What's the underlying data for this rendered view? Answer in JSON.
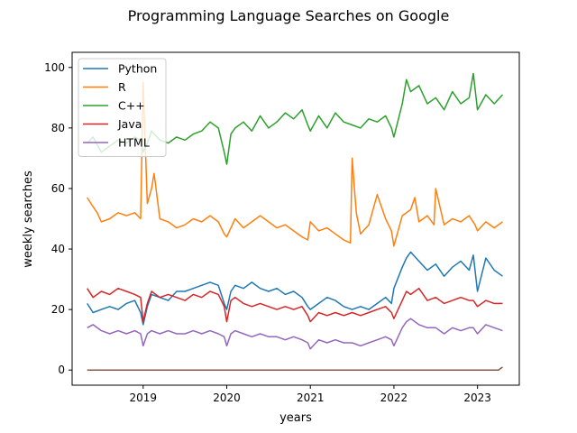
{
  "chart_data": {
    "type": "line",
    "title": "Programming Language Searches on Google",
    "xlabel": "years",
    "ylabel": "weekly searches",
    "xlim": [
      2018.15,
      2023.5
    ],
    "ylim": [
      -5,
      105
    ],
    "x_ticks": [
      2019,
      2020,
      2021,
      2022,
      2023
    ],
    "x_tick_labels": [
      "2019",
      "2020",
      "2021",
      "2022",
      "2023"
    ],
    "y_ticks": [
      0,
      20,
      40,
      60,
      80,
      100
    ],
    "y_tick_labels": [
      "0",
      "20",
      "40",
      "60",
      "80",
      "100"
    ],
    "grid": false,
    "legend_position": "top-left",
    "colors": {
      "Python": "#1f77b4",
      "R": "#ff7f0e",
      "C++": "#2ca02c",
      "Java": "#d62728",
      "HTML": "#9467bd",
      "extra": "#8c564b"
    },
    "series": [
      {
        "name": "Python",
        "x": [
          2018.33,
          2018.4,
          2018.5,
          2018.6,
          2018.7,
          2018.8,
          2018.9,
          2018.97,
          2019.0,
          2019.05,
          2019.1,
          2019.2,
          2019.3,
          2019.4,
          2019.5,
          2019.6,
          2019.7,
          2019.8,
          2019.9,
          2019.97,
          2020.0,
          2020.05,
          2020.1,
          2020.2,
          2020.3,
          2020.4,
          2020.5,
          2020.6,
          2020.7,
          2020.8,
          2020.9,
          2020.97,
          2021.0,
          2021.1,
          2021.2,
          2021.3,
          2021.4,
          2021.5,
          2021.6,
          2021.7,
          2021.8,
          2021.9,
          2021.97,
          2022.0,
          2022.1,
          2022.15,
          2022.2,
          2022.3,
          2022.4,
          2022.5,
          2022.6,
          2022.7,
          2022.8,
          2022.9,
          2022.95,
          2023.0,
          2023.1,
          2023.2,
          2023.3
        ],
        "values": [
          22,
          19,
          20,
          21,
          20,
          22,
          23,
          19,
          15,
          21,
          25,
          24,
          23,
          26,
          26,
          27,
          28,
          29,
          28,
          22,
          20,
          26,
          28,
          27,
          29,
          27,
          26,
          27,
          25,
          26,
          24,
          21,
          20,
          22,
          24,
          23,
          21,
          20,
          21,
          20,
          22,
          24,
          22,
          27,
          34,
          37,
          39,
          36,
          33,
          35,
          31,
          34,
          36,
          33,
          38,
          26,
          37,
          33,
          31
        ]
      },
      {
        "name": "R",
        "x": [
          2018.33,
          2018.4,
          2018.45,
          2018.5,
          2018.6,
          2018.7,
          2018.8,
          2018.9,
          2018.97,
          2019.0,
          2019.05,
          2019.1,
          2019.13,
          2019.2,
          2019.3,
          2019.4,
          2019.5,
          2019.6,
          2019.7,
          2019.8,
          2019.9,
          2019.97,
          2020.0,
          2020.1,
          2020.2,
          2020.3,
          2020.4,
          2020.5,
          2020.6,
          2020.7,
          2020.8,
          2020.9,
          2020.97,
          2021.0,
          2021.1,
          2021.2,
          2021.3,
          2021.4,
          2021.48,
          2021.5,
          2021.55,
          2021.6,
          2021.7,
          2021.8,
          2021.9,
          2021.97,
          2022.0,
          2022.1,
          2022.2,
          2022.25,
          2022.3,
          2022.4,
          2022.48,
          2022.5,
          2022.6,
          2022.7,
          2022.8,
          2022.9,
          2022.97,
          2023.0,
          2023.1,
          2023.2,
          2023.3
        ],
        "values": [
          57,
          54,
          52,
          49,
          50,
          52,
          51,
          52,
          50,
          95,
          55,
          60,
          65,
          50,
          49,
          47,
          48,
          50,
          49,
          51,
          49,
          45,
          44,
          50,
          47,
          49,
          51,
          49,
          47,
          48,
          46,
          44,
          43,
          49,
          46,
          47,
          45,
          43,
          42,
          70,
          52,
          45,
          48,
          58,
          50,
          46,
          41,
          51,
          53,
          57,
          49,
          51,
          48,
          60,
          48,
          50,
          49,
          51,
          48,
          46,
          49,
          47,
          49
        ]
      },
      {
        "name": "C++",
        "x": [
          2018.33,
          2018.4,
          2018.5,
          2018.6,
          2018.7,
          2018.8,
          2018.9,
          2018.97,
          2019.0,
          2019.05,
          2019.1,
          2019.2,
          2019.3,
          2019.4,
          2019.5,
          2019.6,
          2019.7,
          2019.8,
          2019.9,
          2019.97,
          2020.0,
          2020.05,
          2020.1,
          2020.2,
          2020.3,
          2020.4,
          2020.5,
          2020.6,
          2020.7,
          2020.8,
          2020.9,
          2020.97,
          2021.0,
          2021.1,
          2021.2,
          2021.3,
          2021.4,
          2021.5,
          2021.6,
          2021.7,
          2021.8,
          2021.9,
          2021.97,
          2022.0,
          2022.1,
          2022.15,
          2022.2,
          2022.3,
          2022.4,
          2022.5,
          2022.6,
          2022.7,
          2022.8,
          2022.9,
          2022.95,
          2023.0,
          2023.1,
          2023.2,
          2023.3
        ],
        "values": [
          75,
          77,
          72,
          74,
          76,
          75,
          77,
          76,
          72,
          75,
          79,
          76,
          75,
          77,
          76,
          78,
          79,
          82,
          80,
          72,
          68,
          78,
          80,
          82,
          79,
          84,
          80,
          82,
          85,
          83,
          86,
          81,
          79,
          84,
          80,
          85,
          82,
          81,
          80,
          83,
          82,
          84,
          80,
          77,
          88,
          96,
          92,
          94,
          88,
          90,
          86,
          92,
          88,
          90,
          98,
          86,
          91,
          88,
          91
        ]
      },
      {
        "name": "Java",
        "x": [
          2018.33,
          2018.4,
          2018.5,
          2018.6,
          2018.7,
          2018.8,
          2018.9,
          2018.97,
          2019.0,
          2019.05,
          2019.1,
          2019.2,
          2019.3,
          2019.4,
          2019.5,
          2019.6,
          2019.7,
          2019.8,
          2019.9,
          2019.97,
          2020.0,
          2020.05,
          2020.1,
          2020.2,
          2020.3,
          2020.4,
          2020.5,
          2020.6,
          2020.7,
          2020.8,
          2020.9,
          2020.97,
          2021.0,
          2021.1,
          2021.2,
          2021.3,
          2021.4,
          2021.5,
          2021.6,
          2021.7,
          2021.8,
          2021.9,
          2021.97,
          2022.0,
          2022.1,
          2022.15,
          2022.2,
          2022.3,
          2022.4,
          2022.5,
          2022.6,
          2022.7,
          2022.8,
          2022.9,
          2022.95,
          2023.0,
          2023.1,
          2023.2,
          2023.3
        ],
        "values": [
          27,
          24,
          26,
          25,
          27,
          26,
          25,
          24,
          16,
          22,
          26,
          24,
          25,
          24,
          23,
          25,
          24,
          26,
          25,
          21,
          16,
          23,
          24,
          22,
          21,
          22,
          21,
          20,
          21,
          20,
          21,
          18,
          16,
          19,
          18,
          19,
          18,
          19,
          18,
          19,
          20,
          21,
          19,
          17,
          23,
          26,
          25,
          27,
          23,
          24,
          22,
          23,
          24,
          23,
          23,
          21,
          23,
          22,
          22
        ]
      },
      {
        "name": "HTML",
        "x": [
          2018.33,
          2018.4,
          2018.5,
          2018.6,
          2018.7,
          2018.8,
          2018.9,
          2018.97,
          2019.0,
          2019.05,
          2019.1,
          2019.2,
          2019.3,
          2019.4,
          2019.5,
          2019.6,
          2019.7,
          2019.8,
          2019.9,
          2019.97,
          2020.0,
          2020.05,
          2020.1,
          2020.2,
          2020.3,
          2020.4,
          2020.5,
          2020.6,
          2020.7,
          2020.8,
          2020.9,
          2020.97,
          2021.0,
          2021.1,
          2021.2,
          2021.3,
          2021.4,
          2021.5,
          2021.6,
          2021.7,
          2021.8,
          2021.9,
          2021.97,
          2022.0,
          2022.1,
          2022.15,
          2022.2,
          2022.3,
          2022.4,
          2022.5,
          2022.6,
          2022.7,
          2022.8,
          2022.9,
          2022.95,
          2023.0,
          2023.1,
          2023.2,
          2023.3
        ],
        "values": [
          14,
          15,
          13,
          12,
          13,
          12,
          13,
          12,
          8,
          12,
          13,
          12,
          13,
          12,
          12,
          13,
          12,
          13,
          12,
          11,
          8,
          12,
          13,
          12,
          11,
          12,
          11,
          11,
          10,
          11,
          10,
          9,
          7,
          10,
          9,
          10,
          9,
          9,
          8,
          9,
          10,
          11,
          10,
          8,
          14,
          16,
          17,
          15,
          14,
          14,
          12,
          14,
          13,
          14,
          14,
          12,
          15,
          14,
          13
        ]
      },
      {
        "x": [
          2018.33,
          2023.25,
          2023.3
        ],
        "values": [
          0,
          0,
          1
        ]
      }
    ]
  }
}
